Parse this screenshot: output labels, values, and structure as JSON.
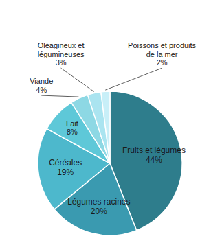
{
  "chart_data": {
    "type": "pie",
    "categories": [
      "Fruits et légumes",
      "Légumes racines",
      "Céréales",
      "Lait",
      "Viande",
      "Oléagineux et\nlégumineuses",
      "Poissons et produits\nde la mer"
    ],
    "values": [
      44,
      20,
      19,
      8,
      4,
      3,
      2
    ],
    "value_labels": [
      "44%",
      "20%",
      "19%",
      "8%",
      "4%",
      "3%",
      "2%"
    ],
    "colors": [
      "#2e7d8c",
      "#3a9ab0",
      "#4db8cc",
      "#5ec8d8",
      "#8dd8e4",
      "#aae4f0",
      "#c8eff8"
    ],
    "data_labels": true
  }
}
